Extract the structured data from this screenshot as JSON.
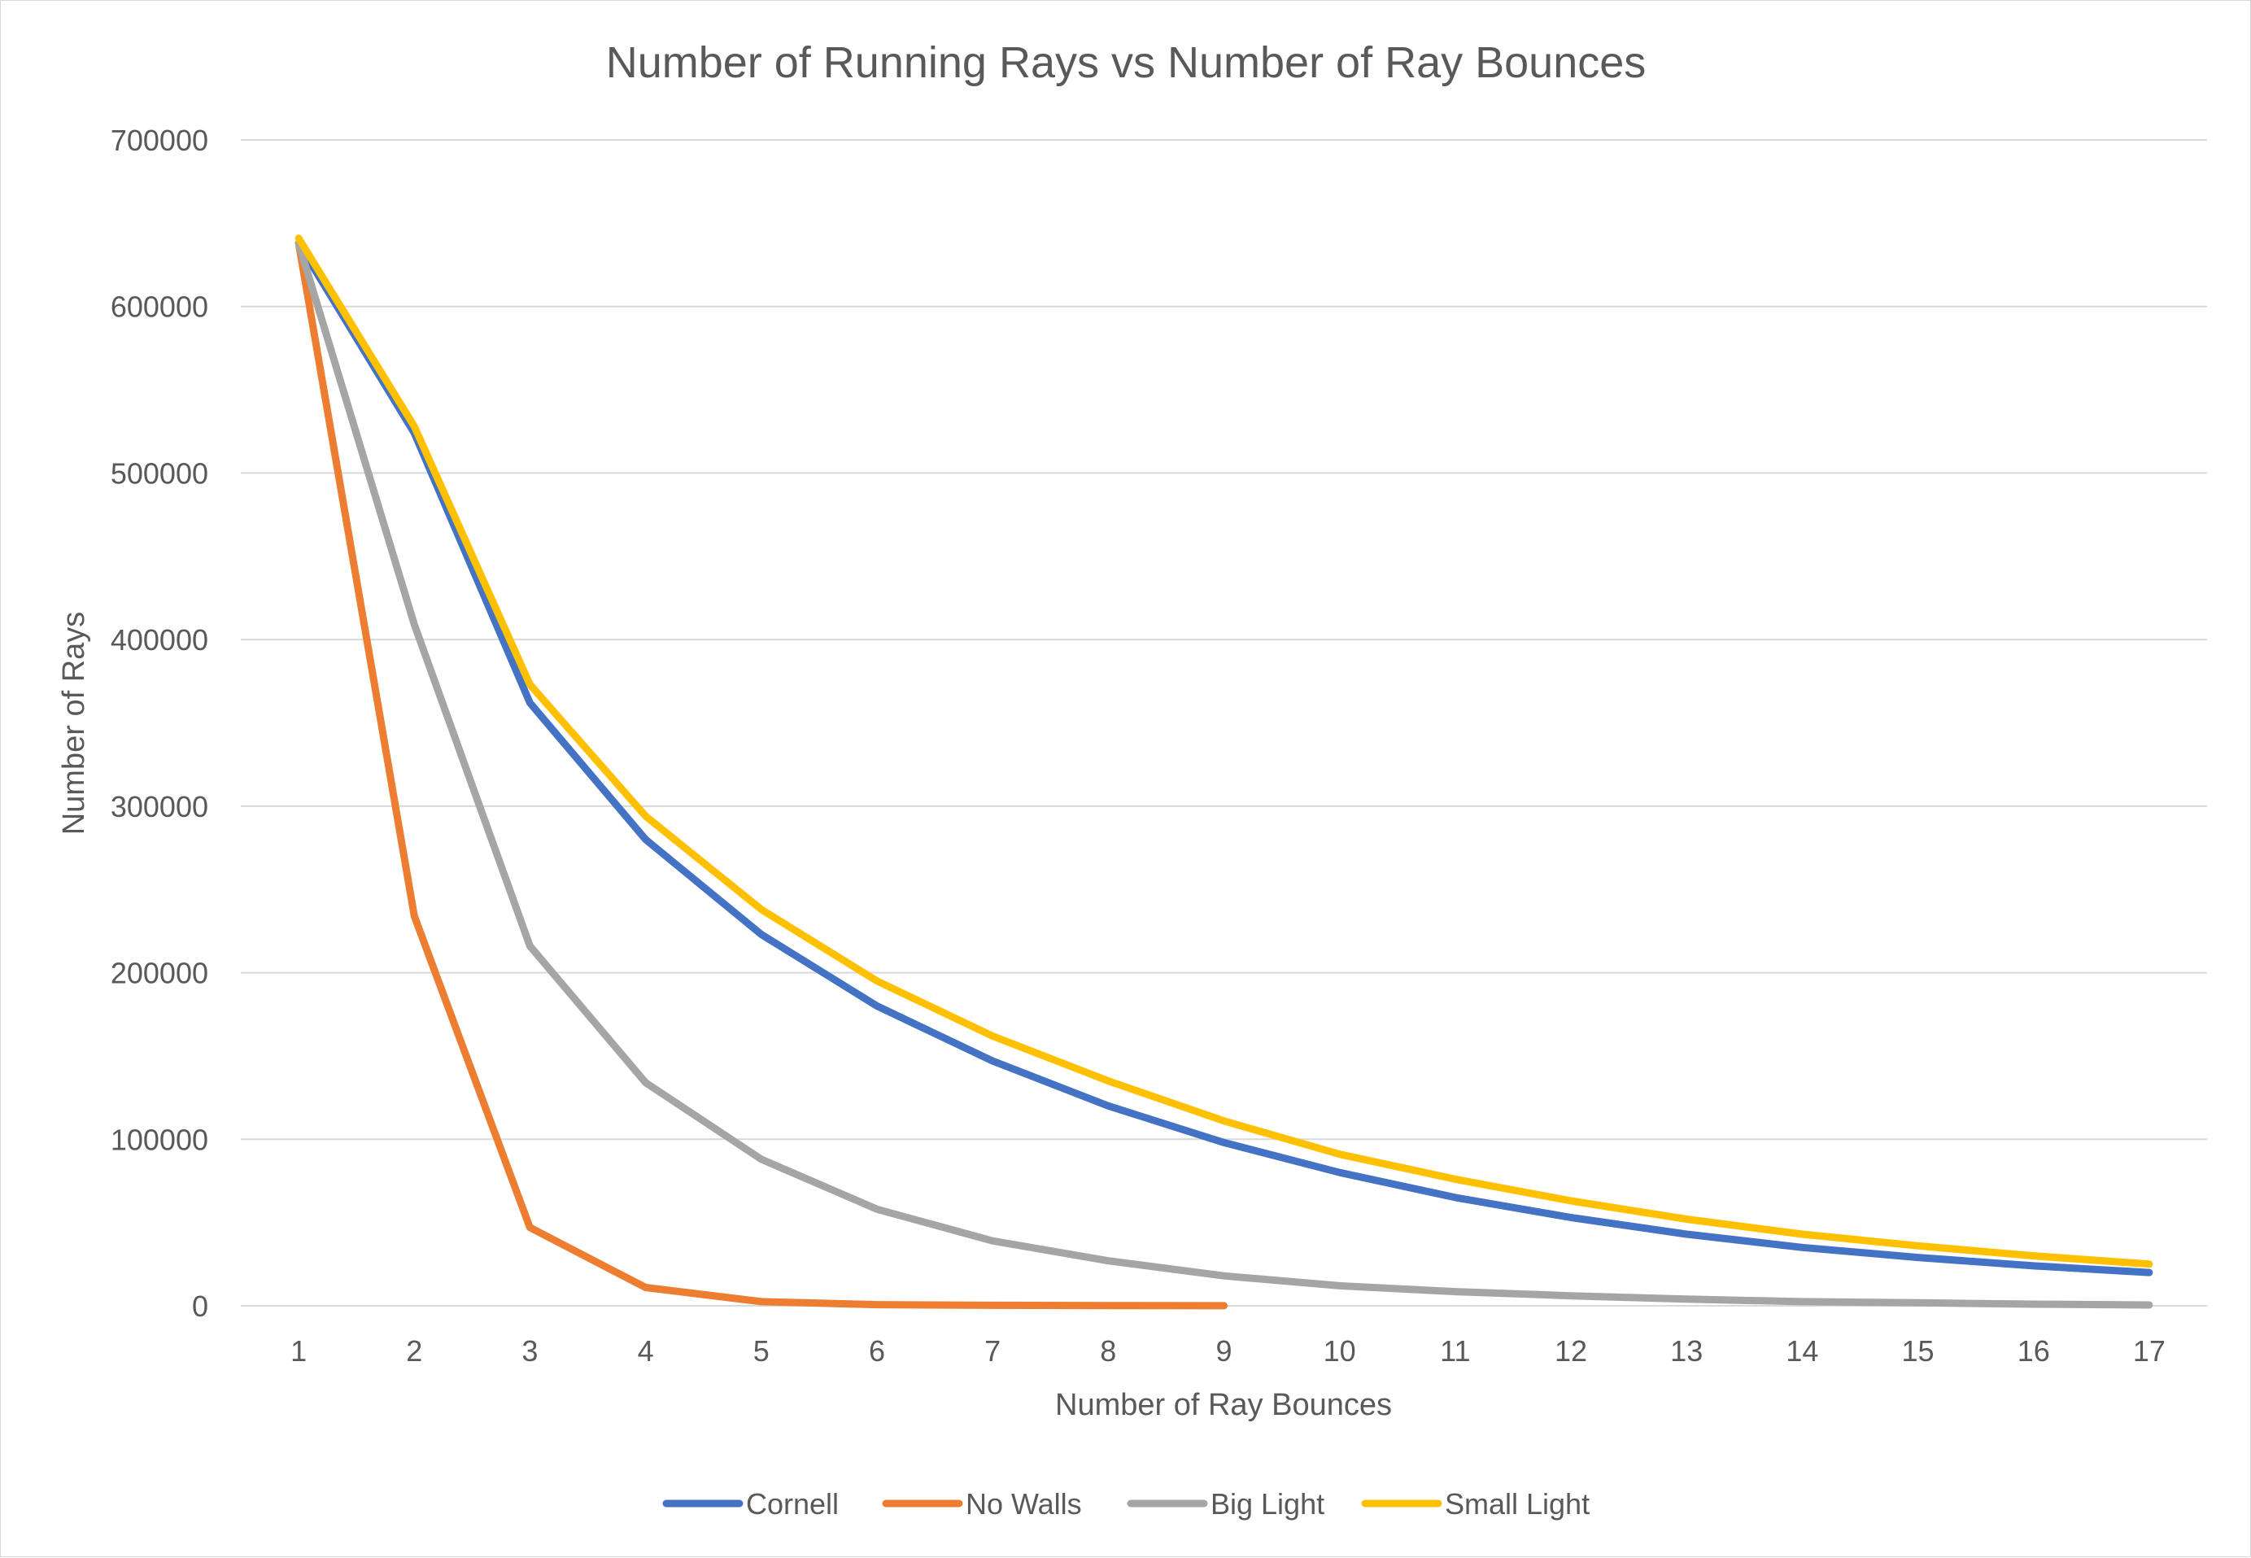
{
  "chart_data": {
    "type": "line",
    "title": "Number of Running Rays vs Number of Ray Bounces",
    "xlabel": "Number of Ray Bounces",
    "ylabel": "Number of Rays",
    "categories": [
      "1",
      "2",
      "3",
      "4",
      "5",
      "6",
      "7",
      "8",
      "9",
      "10",
      "11",
      "12",
      "13",
      "14",
      "15",
      "16",
      "17"
    ],
    "ylim": [
      0,
      700000
    ],
    "yticks": [
      "0",
      "100000",
      "200000",
      "300000",
      "400000",
      "500000",
      "600000",
      "700000"
    ],
    "grid": true,
    "legend_position": "bottom",
    "series": [
      {
        "name": "Cornell",
        "color": "#4472C4",
        "values": [
          638000,
          524000,
          362000,
          280000,
          223000,
          180000,
          147000,
          120000,
          98000,
          80000,
          65000,
          53000,
          43000,
          35000,
          29000,
          24000,
          20000
        ]
      },
      {
        "name": "No Walls",
        "color": "#ED7D31",
        "values": [
          638000,
          234000,
          47000,
          11000,
          2500,
          700,
          300,
          150,
          50,
          null,
          null,
          null,
          null,
          null,
          null,
          null,
          null
        ]
      },
      {
        "name": "Big Light",
        "color": "#A5A5A5",
        "values": [
          638000,
          409000,
          216000,
          134000,
          88000,
          58000,
          39000,
          27000,
          18000,
          12000,
          8500,
          6000,
          4000,
          2500,
          1800,
          1000,
          500
        ]
      },
      {
        "name": "Small Light",
        "color": "#FFC000",
        "values": [
          641000,
          528000,
          373000,
          294000,
          238000,
          195000,
          162000,
          135000,
          111000,
          91000,
          76000,
          63000,
          52000,
          43000,
          36000,
          30000,
          25000
        ]
      }
    ]
  }
}
